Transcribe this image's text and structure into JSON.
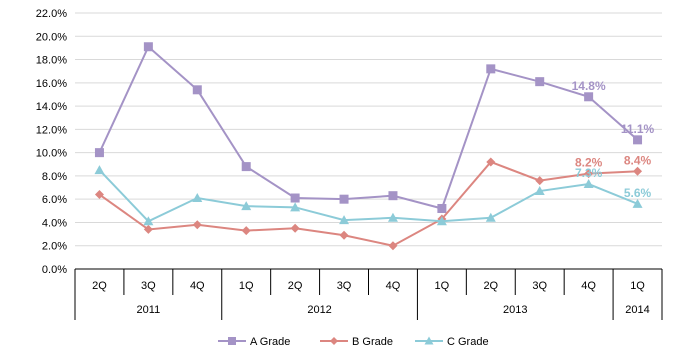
{
  "chart_data": {
    "type": "line",
    "title": "",
    "xlabel": "",
    "ylabel": "",
    "ylim": [
      0,
      22
    ],
    "y_tick_step": 2,
    "y_tick_suffix": "%",
    "grid": true,
    "legend_position": "bottom",
    "categories": [
      "2Q",
      "3Q",
      "4Q",
      "1Q",
      "2Q",
      "3Q",
      "4Q",
      "1Q",
      "2Q",
      "3Q",
      "4Q",
      "1Q"
    ],
    "year_groups": [
      {
        "label": "2011",
        "start": 0,
        "count": 3
      },
      {
        "label": "2012",
        "start": 3,
        "count": 4
      },
      {
        "label": "2013",
        "start": 7,
        "count": 4
      },
      {
        "label": "2014",
        "start": 11,
        "count": 1
      }
    ],
    "series": [
      {
        "name": "A Grade",
        "color": "#a493c6",
        "marker": "square",
        "values": [
          10.0,
          19.1,
          15.4,
          8.8,
          6.1,
          6.0,
          6.3,
          5.2,
          17.2,
          16.1,
          14.8,
          11.1
        ]
      },
      {
        "name": "B Grade",
        "color": "#dc8680",
        "marker": "diamond",
        "values": [
          6.4,
          3.4,
          3.8,
          3.3,
          3.5,
          2.9,
          2.0,
          4.3,
          9.2,
          7.6,
          8.2,
          8.4
        ]
      },
      {
        "name": "C Grade",
        "color": "#8ccbd8",
        "marker": "triangle",
        "values": [
          8.5,
          4.1,
          6.1,
          5.4,
          5.3,
          4.2,
          4.4,
          4.1,
          4.4,
          6.7,
          7.3,
          5.6
        ]
      }
    ],
    "data_labels": [
      {
        "series": 0,
        "index": 10,
        "text": "14.8%"
      },
      {
        "series": 0,
        "index": 11,
        "text": "11.1%"
      },
      {
        "series": 1,
        "index": 10,
        "text": "8.2%"
      },
      {
        "series": 1,
        "index": 11,
        "text": "8.4%"
      },
      {
        "series": 2,
        "index": 10,
        "text": "7.3%"
      },
      {
        "series": 2,
        "index": 11,
        "text": "5.6%"
      }
    ]
  }
}
